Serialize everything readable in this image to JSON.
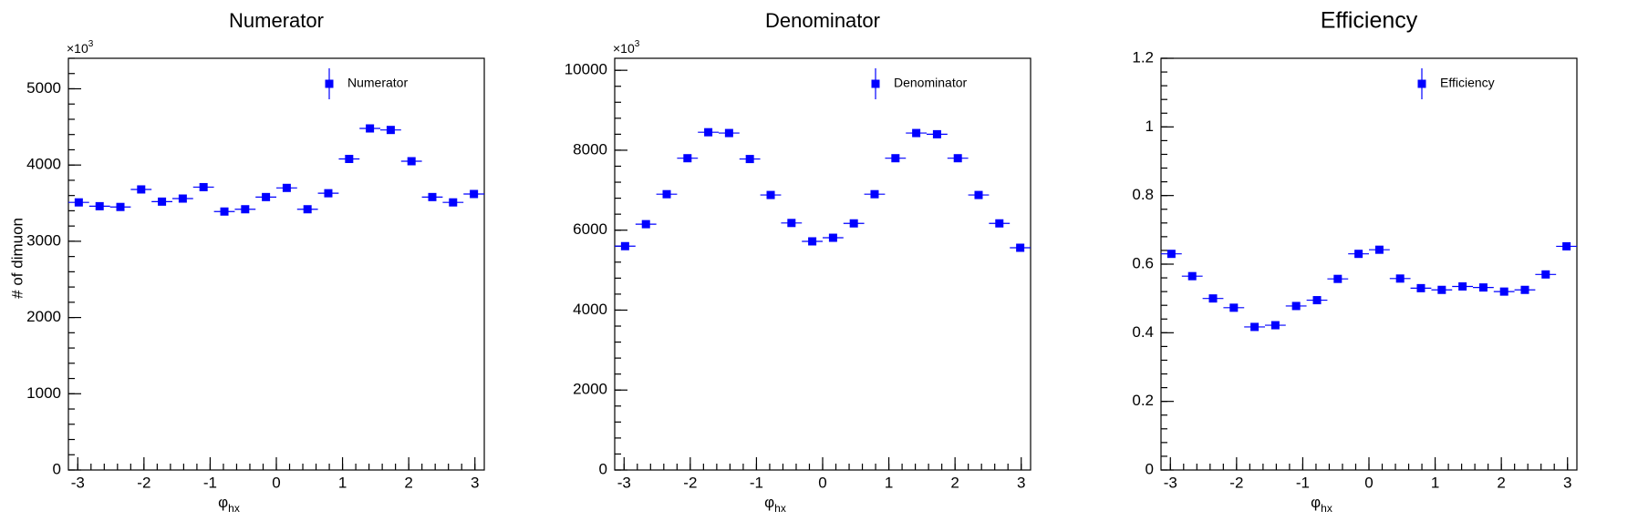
{
  "chart_data": [
    {
      "type": "scatter",
      "title": "Numerator",
      "y_label": "# of dimuon",
      "y_multiplier": "×10",
      "y_multiplier_exp": "3",
      "x_label": "φ",
      "x_label_sub": "hx",
      "x": [
        -2.985,
        -2.67,
        -2.356,
        -2.042,
        -1.728,
        -1.414,
        -1.1,
        -0.785,
        -0.471,
        -0.157,
        0.157,
        0.471,
        0.785,
        1.1,
        1.414,
        1.728,
        2.042,
        2.356,
        2.67,
        2.985
      ],
      "series": [
        {
          "name": "Numerator",
          "color": "#0000ff",
          "values": [
            3510,
            3460,
            3450,
            3680,
            3520,
            3560,
            3710,
            3390,
            3420,
            3580,
            3700,
            3420,
            3630,
            4080,
            4480,
            4460,
            4050,
            3580,
            3510,
            3620
          ]
        }
      ],
      "xlim": [
        -3.1416,
        3.1416
      ],
      "xticks": [
        -3,
        -2,
        -1,
        0,
        1,
        2,
        3
      ],
      "ylim": [
        0,
        5400
      ],
      "yticks": [
        0,
        1000,
        2000,
        3000,
        4000,
        5000
      ],
      "legend": "top-right"
    },
    {
      "type": "scatter",
      "title": "Denominator",
      "y_multiplier": "×10",
      "y_multiplier_exp": "3",
      "x_label": "φ",
      "x_label_sub": "hx",
      "x": [
        -2.985,
        -2.67,
        -2.356,
        -2.042,
        -1.728,
        -1.414,
        -1.1,
        -0.785,
        -0.471,
        -0.157,
        0.157,
        0.471,
        0.785,
        1.1,
        1.414,
        1.728,
        2.042,
        2.356,
        2.67,
        2.985
      ],
      "series": [
        {
          "name": "Denominator",
          "color": "#0000ff",
          "values": [
            5600,
            6150,
            6900,
            7800,
            8450,
            8430,
            7780,
            6880,
            6180,
            5720,
            5810,
            6170,
            6900,
            7800,
            8430,
            8400,
            7800,
            6880,
            6170,
            5560
          ]
        }
      ],
      "xlim": [
        -3.1416,
        3.1416
      ],
      "xticks": [
        -3,
        -2,
        -1,
        0,
        1,
        2,
        3
      ],
      "ylim": [
        0,
        10300
      ],
      "yticks": [
        0,
        2000,
        4000,
        6000,
        8000,
        10000
      ],
      "legend": "top-right"
    },
    {
      "type": "scatter",
      "title": "Efficiency",
      "x_label": "φ",
      "x_label_sub": "hx",
      "x": [
        -2.985,
        -2.67,
        -2.356,
        -2.042,
        -1.728,
        -1.414,
        -1.1,
        -0.785,
        -0.471,
        -0.157,
        0.157,
        0.471,
        0.785,
        1.1,
        1.414,
        1.728,
        2.042,
        2.356,
        2.67,
        2.985
      ],
      "series": [
        {
          "name": "Efficiency",
          "color": "#0000ff",
          "values": [
            0.63,
            0.565,
            0.5,
            0.473,
            0.417,
            0.422,
            0.478,
            0.495,
            0.557,
            0.63,
            0.642,
            0.558,
            0.53,
            0.525,
            0.535,
            0.532,
            0.52,
            0.525,
            0.57,
            0.652
          ]
        }
      ],
      "xlim": [
        -3.1416,
        3.1416
      ],
      "xticks": [
        -3,
        -2,
        -1,
        0,
        1,
        2,
        3
      ],
      "ylim": [
        0,
        1.2
      ],
      "yticks": [
        0,
        0.2,
        0.4,
        0.6,
        0.8,
        1,
        1.2
      ],
      "legend": "top-right"
    }
  ]
}
